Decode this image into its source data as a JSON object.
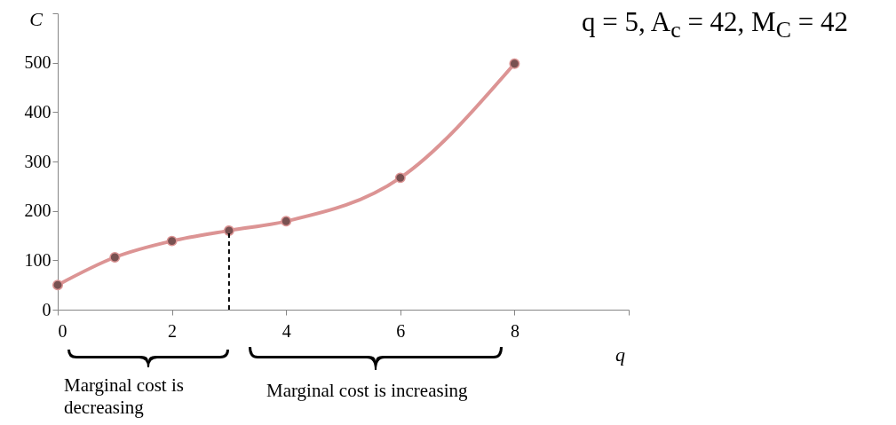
{
  "chart_data": {
    "type": "line",
    "xlabel": "q",
    "ylabel": "C",
    "x": [
      0,
      1,
      2,
      3,
      4,
      6,
      8
    ],
    "series": [
      {
        "color": "#dc9494",
        "values": [
          50,
          106,
          139,
          160,
          179,
          267,
          498
        ]
      }
    ],
    "marker": "circle",
    "line_style": "solid",
    "xlim": [
      0,
      10
    ],
    "xticks": [
      0,
      2,
      4,
      6,
      8,
      {
        "value": 10,
        "label": null
      }
    ],
    "ylim": [
      0,
      600
    ],
    "yticks": [
      0,
      100,
      200,
      300,
      400,
      500,
      {
        "value": 600,
        "label": null
      }
    ],
    "ref_lines": [
      {
        "axis": "x",
        "value": 3,
        "line_style": "dashed",
        "color": "#000000"
      }
    ],
    "annotations": [
      "q = 5, A$_{c}$ = 42, M$_{C}$ = 42",
      "Marginal cost is decreasing",
      "Marginal cost is increasing"
    ]
  }
}
